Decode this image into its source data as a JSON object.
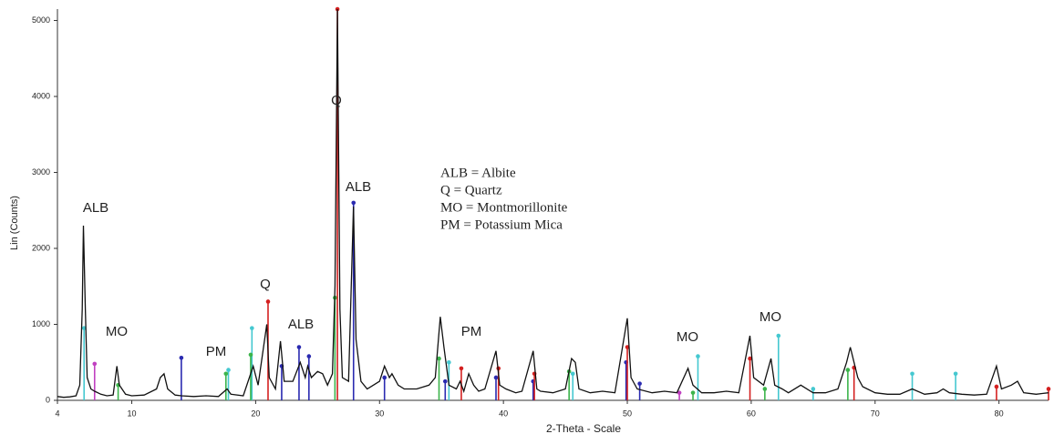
{
  "chart_data": {
    "type": "line",
    "xlabel": "2-Theta - Scale",
    "ylabel": "Lin (Counts)",
    "xlim": [
      4,
      84
    ],
    "ylim": [
      0,
      5150
    ],
    "xticks": [
      4,
      10,
      20,
      30,
      40,
      50,
      60,
      70,
      80
    ],
    "yticks": [
      0,
      1000,
      2000,
      3000,
      4000,
      5000
    ],
    "color": "#111111",
    "x": [
      4.0,
      4.5,
      5.0,
      5.5,
      5.8,
      6.0,
      6.1,
      6.25,
      6.4,
      6.7,
      7.0,
      7.5,
      8.0,
      8.5,
      8.8,
      9.0,
      9.5,
      10,
      11,
      12,
      12.3,
      12.6,
      12.9,
      13.5,
      14,
      15,
      16,
      17,
      17.7,
      18,
      19,
      19.8,
      20.2,
      20.9,
      21.1,
      21.6,
      22.0,
      22.3,
      23,
      23.6,
      24,
      24.2,
      24.5,
      25,
      25.4,
      25.8,
      26.2,
      26.4,
      26.6,
      26.8,
      27.0,
      27.5,
      27.9,
      28.1,
      28.5,
      29,
      29.5,
      30,
      30.4,
      30.8,
      31,
      31.5,
      32,
      33,
      34,
      34.5,
      34.9,
      35.2,
      35.6,
      36.2,
      36.5,
      36.8,
      37.2,
      37.6,
      38,
      38.5,
      39.4,
      39.7,
      40.2,
      41,
      41.5,
      42.4,
      42.7,
      43,
      44,
      45,
      45.5,
      45.8,
      46.1,
      47,
      48,
      49,
      50.0,
      50.3,
      50.8,
      52,
      53,
      54,
      54.9,
      55.3,
      56,
      57,
      58,
      59,
      59.9,
      60.2,
      61,
      61.6,
      61.9,
      62.5,
      63,
      64,
      65,
      66,
      67,
      67.7,
      68,
      68.3,
      68.6,
      69,
      70,
      71,
      72,
      73,
      74,
      75,
      75.5,
      76,
      77,
      78,
      79,
      79.8,
      80.2,
      81,
      81.5,
      82,
      83,
      84
    ],
    "values": [
      50,
      40,
      45,
      60,
      200,
      1200,
      2300,
      1200,
      300,
      150,
      120,
      80,
      60,
      70,
      450,
      200,
      80,
      60,
      70,
      150,
      300,
      350,
      150,
      70,
      60,
      50,
      60,
      50,
      150,
      80,
      60,
      450,
      200,
      1000,
      300,
      150,
      780,
      250,
      250,
      500,
      300,
      450,
      300,
      380,
      350,
      200,
      350,
      1500,
      5150,
      1200,
      300,
      250,
      2550,
      800,
      250,
      150,
      200,
      250,
      450,
      300,
      350,
      200,
      150,
      150,
      200,
      300,
      1100,
      700,
      200,
      150,
      250,
      120,
      350,
      200,
      120,
      150,
      650,
      200,
      150,
      100,
      120,
      650,
      150,
      120,
      100,
      150,
      550,
      500,
      150,
      100,
      120,
      100,
      1080,
      300,
      150,
      100,
      120,
      100,
      420,
      200,
      100,
      100,
      120,
      100,
      850,
      300,
      200,
      550,
      200,
      150,
      100,
      200,
      100,
      100,
      150,
      500,
      700,
      500,
      300,
      180,
      100,
      80,
      80,
      150,
      80,
      100,
      150,
      100,
      80,
      70,
      80,
      450,
      150,
      200,
      250,
      100,
      80,
      100
    ],
    "markers": [
      {
        "color": "#45c8d0",
        "x": [
          6.15,
          17.8,
          19.7,
          35.6,
          45.6,
          55.7,
          62.2,
          65,
          73,
          76.5
        ],
        "values": [
          950,
          400,
          950,
          500,
          350,
          580,
          850,
          150,
          350,
          350
        ]
      },
      {
        "color": "#c040c0",
        "x": [
          7.0,
          54.2
        ],
        "values": [
          480,
          100
        ]
      },
      {
        "color": "#3cb44b",
        "x": [
          8.9,
          17.6,
          19.6,
          26.4,
          34.8,
          45.3,
          55.3,
          61.1,
          67.8
        ],
        "values": [
          200,
          350,
          600,
          1350,
          550,
          380,
          100,
          150,
          400
        ]
      },
      {
        "color": "#2a2ab0",
        "x": [
          14.0,
          22.1,
          23.5,
          24.3,
          27.9,
          30.4,
          35.3,
          39.4,
          42.4,
          49.9,
          51
        ],
        "values": [
          560,
          450,
          700,
          580,
          2600,
          300,
          250,
          300,
          250,
          500,
          220
        ]
      },
      {
        "color": "#d42020",
        "x": [
          21.0,
          26.6,
          36.6,
          39.6,
          42.5,
          50.0,
          59.9,
          68.3,
          79.8,
          84
        ],
        "values": [
          1300,
          5150,
          420,
          420,
          350,
          700,
          550,
          430,
          180,
          150
        ]
      }
    ],
    "annotations": [
      "ALB",
      "MO",
      "PM",
      "Q",
      "ALB",
      "Q",
      "ALB",
      "PM",
      "MO",
      "MO"
    ],
    "key": [
      "ALB = Albite",
      "Q = Quartz",
      "MO = Montmorillonite",
      "PM = Potassium Mica"
    ]
  }
}
